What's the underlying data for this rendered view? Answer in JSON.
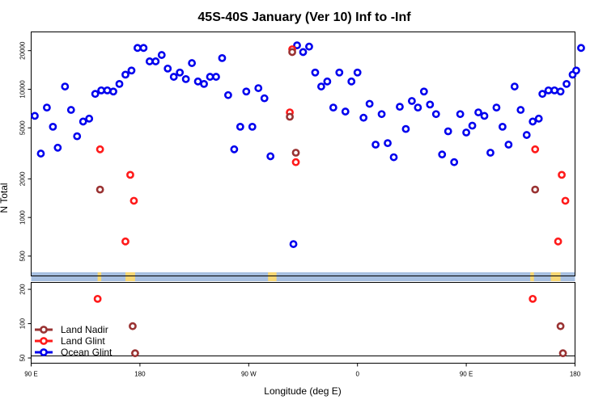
{
  "chart_data": {
    "type": "scatter",
    "title": "45S-40S January (Ver 10)   Inf to -Inf",
    "xlabel": "Longitude (deg E)",
    "ylabel": "N Total",
    "x_ticks": [
      {
        "value": 90,
        "label": "90 E"
      },
      {
        "value": 180,
        "label": "180"
      },
      {
        "value": 270,
        "label": "90 W"
      },
      {
        "value": 360,
        "label": "0"
      },
      {
        "value": 450,
        "label": "90 E"
      },
      {
        "value": 540,
        "label": "180"
      }
    ],
    "xlim": [
      90,
      540
    ],
    "upper_panel": {
      "scale": "log",
      "ylim": [
        350,
        28000
      ],
      "y_ticks": [
        500,
        1000,
        2000,
        5000,
        10000,
        20000
      ]
    },
    "lower_panel": {
      "scale": "log",
      "ylim": [
        45,
        230
      ],
      "y_ticks": [
        50,
        100,
        200
      ]
    },
    "land_mask": {
      "stripe_color": "#a7bfe0",
      "land_color": "#f7d774",
      "land_segments": [
        [
          145,
          148
        ],
        [
          168,
          176
        ],
        [
          286,
          293
        ],
        [
          503,
          506
        ],
        [
          520,
          528
        ]
      ]
    },
    "series": [
      {
        "name": "Land Nadir",
        "color": "#9a3333",
        "points": [
          [
            147,
            1650
          ],
          [
            306,
            19500
          ],
          [
            304,
            6100
          ],
          [
            309,
            3200
          ],
          [
            507,
            1650
          ],
          [
            174,
            95
          ],
          [
            176,
            55
          ],
          [
            528,
            95
          ],
          [
            530,
            55
          ]
        ]
      },
      {
        "name": "Land Glint",
        "color": "#ff1a1a",
        "points": [
          [
            147,
            3400
          ],
          [
            168,
            650
          ],
          [
            172,
            2150
          ],
          [
            175,
            1350
          ],
          [
            306,
            20500
          ],
          [
            304,
            6600
          ],
          [
            309,
            2700
          ],
          [
            507,
            3400
          ],
          [
            526,
            650
          ],
          [
            529,
            2150
          ],
          [
            532,
            1350
          ],
          [
            145,
            165
          ],
          [
            505,
            165
          ]
        ]
      },
      {
        "name": "Ocean Glint",
        "color": "#0000ee",
        "points": [
          [
            93,
            6200
          ],
          [
            98,
            3150
          ],
          [
            103,
            7200
          ],
          [
            108,
            5100
          ],
          [
            112,
            3500
          ],
          [
            118,
            10500
          ],
          [
            123,
            6900
          ],
          [
            128,
            4300
          ],
          [
            133,
            5600
          ],
          [
            138,
            5900
          ],
          [
            143,
            9200
          ],
          [
            148,
            9800
          ],
          [
            153,
            9800
          ],
          [
            158,
            9600
          ],
          [
            163,
            11000
          ],
          [
            168,
            13000
          ],
          [
            173,
            14000
          ],
          [
            178,
            21000
          ],
          [
            183,
            21000
          ],
          [
            188,
            16500
          ],
          [
            193,
            16500
          ],
          [
            198,
            18500
          ],
          [
            203,
            14500
          ],
          [
            208,
            12500
          ],
          [
            213,
            13500
          ],
          [
            218,
            12000
          ],
          [
            223,
            16000
          ],
          [
            228,
            11500
          ],
          [
            233,
            11000
          ],
          [
            238,
            12500
          ],
          [
            243,
            12500
          ],
          [
            248,
            17500
          ],
          [
            253,
            9000
          ],
          [
            258,
            3400
          ],
          [
            263,
            5100
          ],
          [
            268,
            9600
          ],
          [
            273,
            5100
          ],
          [
            278,
            10200
          ],
          [
            283,
            8500
          ],
          [
            288,
            3000
          ],
          [
            307,
            620
          ],
          [
            310,
            22000
          ],
          [
            315,
            19500
          ],
          [
            320,
            21500
          ],
          [
            325,
            13500
          ],
          [
            330,
            10500
          ],
          [
            335,
            11500
          ],
          [
            340,
            7200
          ],
          [
            345,
            13500
          ],
          [
            350,
            6700
          ],
          [
            355,
            11500
          ],
          [
            360,
            13500
          ],
          [
            365,
            6000
          ],
          [
            370,
            7700
          ],
          [
            375,
            3700
          ],
          [
            380,
            6400
          ],
          [
            385,
            3800
          ],
          [
            390,
            2950
          ],
          [
            395,
            7300
          ],
          [
            400,
            4900
          ],
          [
            405,
            8100
          ],
          [
            410,
            7200
          ],
          [
            415,
            9600
          ],
          [
            420,
            7600
          ],
          [
            425,
            6400
          ],
          [
            430,
            3100
          ],
          [
            435,
            4700
          ],
          [
            440,
            2700
          ],
          [
            445,
            6400
          ],
          [
            450,
            4600
          ],
          [
            455,
            5200
          ],
          [
            460,
            6600
          ],
          [
            465,
            6200
          ],
          [
            470,
            3200
          ],
          [
            475,
            7200
          ],
          [
            480,
            5100
          ],
          [
            485,
            3700
          ],
          [
            490,
            10500
          ],
          [
            495,
            6900
          ],
          [
            500,
            4400
          ],
          [
            505,
            5600
          ],
          [
            510,
            5900
          ],
          [
            513,
            9200
          ],
          [
            518,
            9800
          ],
          [
            523,
            9800
          ],
          [
            528,
            9600
          ],
          [
            533,
            11000
          ],
          [
            538,
            13000
          ],
          [
            541,
            14000
          ],
          [
            545,
            21000
          ]
        ]
      }
    ],
    "legend": {
      "placement": "bottom-left",
      "entries": [
        "Land Nadir",
        "Land Glint",
        "Ocean Glint"
      ]
    }
  }
}
